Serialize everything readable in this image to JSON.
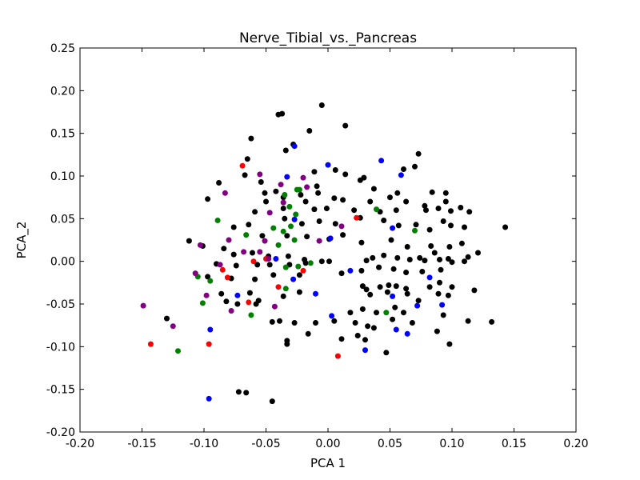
{
  "chart_data": {
    "type": "scatter",
    "title": "Nerve_Tibial_vs._Pancreas",
    "xlabel": "PCA 1",
    "ylabel": "PCA_2",
    "xlim": [
      -0.2,
      0.2
    ],
    "ylim": [
      -0.2,
      0.25
    ],
    "xticks": [
      "-0.20",
      "-0.15",
      "-0.10",
      "-0.05",
      "0.00",
      "0.05",
      "0.10",
      "0.15",
      "0.20"
    ],
    "yticks": [
      "-0.20",
      "-0.15",
      "-0.10",
      "-0.05",
      "0.00",
      "0.05",
      "0.10",
      "0.15",
      "0.20",
      "0.25"
    ],
    "grid": false,
    "series": [
      {
        "color": "#000000",
        "points": [
          [
            -0.005,
            0.183
          ],
          [
            -0.04,
            0.172
          ],
          [
            -0.037,
            0.173
          ],
          [
            -0.015,
            0.153
          ],
          [
            0.014,
            0.159
          ],
          [
            -0.062,
            0.144
          ],
          [
            -0.028,
            0.137
          ],
          [
            -0.034,
            0.13
          ],
          [
            -0.065,
            0.12
          ],
          [
            0.073,
            0.126
          ],
          [
            0.07,
            0.111
          ],
          [
            0.061,
            0.108
          ],
          [
            -0.067,
            0.101
          ],
          [
            -0.011,
            0.105
          ],
          [
            0.006,
            0.107
          ],
          [
            0.014,
            0.102
          ],
          [
            0.029,
            0.098
          ],
          [
            -0.088,
            0.092
          ],
          [
            -0.054,
            0.093
          ],
          [
            -0.009,
            0.088
          ],
          [
            0.026,
            0.095
          ],
          [
            -0.042,
            0.082
          ],
          [
            -0.051,
            0.08
          ],
          [
            -0.022,
            0.078
          ],
          [
            -0.008,
            0.08
          ],
          [
            0.005,
            0.074
          ],
          [
            0.037,
            0.085
          ],
          [
            0.056,
            0.08
          ],
          [
            0.084,
            0.081
          ],
          [
            0.095,
            0.08
          ],
          [
            -0.097,
            0.073
          ],
          [
            -0.05,
            0.07
          ],
          [
            -0.036,
            0.075
          ],
          [
            -0.018,
            0.07
          ],
          [
            0.012,
            0.072
          ],
          [
            0.034,
            0.07
          ],
          [
            0.05,
            0.075
          ],
          [
            0.063,
            0.07
          ],
          [
            0.078,
            0.065
          ],
          [
            0.089,
            0.062
          ],
          [
            0.095,
            0.07
          ],
          [
            0.107,
            0.063
          ],
          [
            -0.059,
            0.058
          ],
          [
            -0.036,
            0.062
          ],
          [
            -0.011,
            0.061
          ],
          [
            -0.001,
            0.062
          ],
          [
            0.021,
            0.06
          ],
          [
            0.042,
            0.058
          ],
          [
            0.055,
            0.06
          ],
          [
            0.079,
            0.06
          ],
          [
            0.099,
            0.059
          ],
          [
            0.114,
            0.058
          ],
          [
            -0.076,
            0.04
          ],
          [
            -0.064,
            0.043
          ],
          [
            -0.035,
            0.05
          ],
          [
            -0.021,
            0.044
          ],
          [
            -0.007,
            0.047
          ],
          [
            0.006,
            0.044
          ],
          [
            0.026,
            0.051
          ],
          [
            0.045,
            0.048
          ],
          [
            0.057,
            0.042
          ],
          [
            0.071,
            0.043
          ],
          [
            0.082,
            0.037
          ],
          [
            0.093,
            0.047
          ],
          [
            0.099,
            0.042
          ],
          [
            0.11,
            0.04
          ],
          [
            -0.112,
            0.024
          ],
          [
            -0.101,
            0.018
          ],
          [
            -0.084,
            0.015
          ],
          [
            -0.053,
            0.03
          ],
          [
            -0.033,
            0.03
          ],
          [
            -0.017,
            0.029
          ],
          [
            0.001,
            0.026
          ],
          [
            0.012,
            0.031
          ],
          [
            0.027,
            0.022
          ],
          [
            0.051,
            0.025
          ],
          [
            0.064,
            0.017
          ],
          [
            0.083,
            0.018
          ],
          [
            0.098,
            0.017
          ],
          [
            0.108,
            0.021
          ],
          [
            0.143,
            0.04
          ],
          [
            0.074,
            0.004
          ],
          [
            0.086,
            0.01
          ],
          [
            0.097,
            0.003
          ],
          [
            0.113,
            0.005
          ],
          [
            0.121,
            0.01
          ],
          [
            -0.076,
            0.008
          ],
          [
            -0.061,
            0.01
          ],
          [
            -0.048,
            0.006
          ],
          [
            -0.032,
            0.006
          ],
          [
            -0.019,
            0.002
          ],
          [
            -0.005,
            0.0
          ],
          [
            0.001,
            0.0
          ],
          [
            0.031,
            0.001
          ],
          [
            0.036,
            0.004
          ],
          [
            0.045,
            0.007
          ],
          [
            0.056,
            0.004
          ],
          [
            0.066,
            0.002
          ],
          [
            0.078,
            0.001
          ],
          [
            0.09,
            0.002
          ],
          [
            0.1,
            -0.001
          ],
          [
            0.11,
            0.0
          ],
          [
            -0.09,
            -0.003
          ],
          [
            -0.074,
            -0.005
          ],
          [
            -0.057,
            -0.004
          ],
          [
            -0.047,
            -0.004
          ],
          [
            -0.031,
            -0.004
          ],
          [
            -0.018,
            -0.002
          ],
          [
            0.027,
            -0.011
          ],
          [
            0.041,
            -0.007
          ],
          [
            0.053,
            -0.009
          ],
          [
            0.063,
            -0.013
          ],
          [
            0.076,
            -0.012
          ],
          [
            0.091,
            -0.01
          ],
          [
            -0.097,
            -0.018
          ],
          [
            -0.078,
            -0.02
          ],
          [
            -0.059,
            -0.021
          ],
          [
            -0.044,
            -0.016
          ],
          [
            -0.023,
            -0.016
          ],
          [
            0.011,
            -0.014
          ],
          [
            0.028,
            -0.029
          ],
          [
            0.031,
            -0.033
          ],
          [
            0.042,
            -0.03
          ],
          [
            0.049,
            -0.028
          ],
          [
            0.055,
            -0.029
          ],
          [
            0.063,
            -0.032
          ],
          [
            0.082,
            -0.03
          ],
          [
            0.09,
            -0.025
          ],
          [
            0.1,
            -0.03
          ],
          [
            0.118,
            -0.034
          ],
          [
            -0.086,
            -0.038
          ],
          [
            -0.063,
            -0.037
          ],
          [
            -0.056,
            -0.046
          ],
          [
            -0.036,
            -0.041
          ],
          [
            -0.023,
            -0.036
          ],
          [
            0.034,
            -0.039
          ],
          [
            0.048,
            -0.036
          ],
          [
            0.064,
            -0.038
          ],
          [
            0.073,
            -0.046
          ],
          [
            0.089,
            -0.038
          ],
          [
            0.097,
            -0.04
          ],
          [
            -0.082,
            -0.047
          ],
          [
            -0.073,
            -0.05
          ],
          [
            -0.058,
            -0.05
          ],
          [
            0.018,
            -0.06
          ],
          [
            0.028,
            -0.056
          ],
          [
            0.039,
            -0.06
          ],
          [
            0.054,
            -0.054
          ],
          [
            0.061,
            -0.06
          ],
          [
            0.093,
            -0.063
          ],
          [
            -0.13,
            -0.067
          ],
          [
            -0.045,
            -0.071
          ],
          [
            -0.039,
            -0.07
          ],
          [
            -0.027,
            -0.072
          ],
          [
            -0.01,
            -0.072
          ],
          [
            0.005,
            -0.07
          ],
          [
            0.022,
            -0.072
          ],
          [
            0.032,
            -0.076
          ],
          [
            0.037,
            -0.078
          ],
          [
            0.052,
            -0.068
          ],
          [
            0.068,
            -0.072
          ],
          [
            0.088,
            -0.082
          ],
          [
            0.113,
            -0.07
          ],
          [
            0.132,
            -0.071
          ],
          [
            -0.033,
            -0.093
          ],
          [
            -0.033,
            -0.097
          ],
          [
            -0.016,
            -0.085
          ],
          [
            0.011,
            -0.091
          ],
          [
            0.024,
            -0.087
          ],
          [
            0.03,
            -0.092
          ],
          [
            0.047,
            -0.107
          ],
          [
            0.098,
            -0.097
          ],
          [
            -0.072,
            -0.153
          ],
          [
            -0.066,
            -0.154
          ],
          [
            -0.045,
            -0.164
          ]
        ]
      },
      {
        "color": "#0000ff",
        "points": [
          [
            -0.027,
            0.135
          ],
          [
            -0.033,
            0.099
          ],
          [
            0.0,
            0.113
          ],
          [
            0.043,
            0.118
          ],
          [
            0.059,
            0.101
          ],
          [
            -0.027,
            0.049
          ],
          [
            0.052,
            0.039
          ],
          [
            0.002,
            0.027
          ],
          [
            -0.042,
            0.003
          ],
          [
            0.018,
            -0.011
          ],
          [
            -0.028,
            -0.021
          ],
          [
            -0.073,
            -0.04
          ],
          [
            -0.01,
            -0.038
          ],
          [
            0.052,
            -0.041
          ],
          [
            0.082,
            -0.019
          ],
          [
            0.072,
            -0.052
          ],
          [
            0.092,
            -0.051
          ],
          [
            0.003,
            -0.064
          ],
          [
            0.055,
            -0.08
          ],
          [
            0.064,
            -0.085
          ],
          [
            -0.095,
            -0.08
          ],
          [
            0.03,
            -0.104
          ],
          [
            -0.096,
            -0.161
          ]
        ]
      },
      {
        "color": "#ff0000",
        "points": [
          [
            -0.069,
            0.112
          ],
          [
            0.023,
            0.051
          ],
          [
            -0.06,
            0.0
          ],
          [
            -0.05,
            0.003
          ],
          [
            -0.02,
            -0.011
          ],
          [
            -0.081,
            -0.019
          ],
          [
            -0.085,
            -0.01
          ],
          [
            -0.04,
            -0.03
          ],
          [
            -0.064,
            -0.048
          ],
          [
            -0.143,
            -0.097
          ],
          [
            -0.096,
            -0.097
          ],
          [
            0.008,
            -0.111
          ]
        ]
      },
      {
        "color": "#008000",
        "points": [
          [
            -0.025,
            0.084
          ],
          [
            -0.023,
            0.084
          ],
          [
            -0.035,
            0.078
          ],
          [
            -0.031,
            0.064
          ],
          [
            -0.089,
            0.048
          ],
          [
            0.039,
            0.061
          ],
          [
            -0.026,
            0.055
          ],
          [
            -0.044,
            0.039
          ],
          [
            -0.03,
            0.041
          ],
          [
            -0.036,
            0.035
          ],
          [
            -0.066,
            0.031
          ],
          [
            -0.027,
            0.025
          ],
          [
            -0.04,
            0.019
          ],
          [
            -0.034,
            -0.007
          ],
          [
            -0.014,
            -0.002
          ],
          [
            -0.024,
            -0.006
          ],
          [
            -0.105,
            -0.018
          ],
          [
            -0.095,
            -0.023
          ],
          [
            -0.034,
            -0.032
          ],
          [
            -0.062,
            -0.063
          ],
          [
            -0.101,
            -0.049
          ],
          [
            0.047,
            -0.06
          ],
          [
            0.07,
            0.036
          ],
          [
            -0.121,
            -0.105
          ]
        ]
      },
      {
        "color": "#800080",
        "points": [
          [
            -0.055,
            0.102
          ],
          [
            -0.038,
            0.09
          ],
          [
            -0.02,
            0.098
          ],
          [
            -0.017,
            0.087
          ],
          [
            -0.083,
            0.08
          ],
          [
            -0.036,
            0.069
          ],
          [
            -0.047,
            0.057
          ],
          [
            -0.08,
            0.025
          ],
          [
            -0.051,
            0.024
          ],
          [
            -0.007,
            0.024
          ],
          [
            0.011,
            0.041
          ],
          [
            -0.103,
            0.019
          ],
          [
            -0.068,
            0.011
          ],
          [
            -0.055,
            0.011
          ],
          [
            -0.048,
            0.003
          ],
          [
            -0.087,
            -0.004
          ],
          [
            -0.107,
            -0.014
          ],
          [
            -0.098,
            -0.04
          ],
          [
            -0.078,
            -0.058
          ],
          [
            -0.043,
            -0.053
          ],
          [
            -0.149,
            -0.052
          ],
          [
            -0.125,
            -0.076
          ]
        ]
      }
    ]
  }
}
